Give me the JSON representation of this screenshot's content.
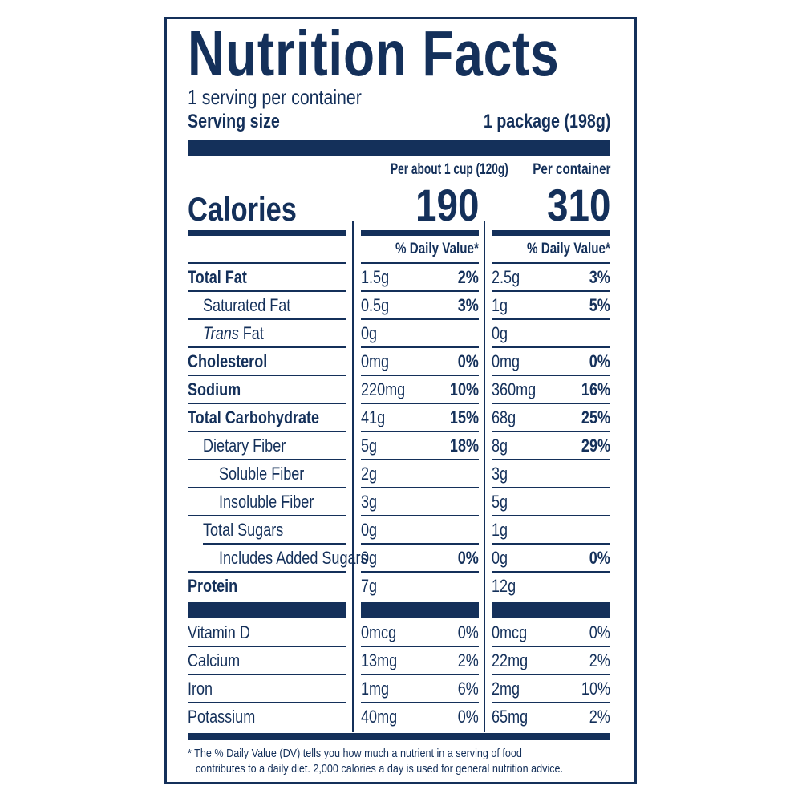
{
  "title": "Nutrition Facts",
  "servings_per_container": "1 serving per container",
  "serving_size_label": "Serving size",
  "serving_size_value": "1 package (198g)",
  "columns": [
    {
      "header": "Per about 1 cup (120g)",
      "calories": "190",
      "dv_header": "% Daily Value*"
    },
    {
      "header": "Per container",
      "calories": "310",
      "dv_header": "% Daily Value*"
    }
  ],
  "calories_label": "Calories",
  "nutrients": [
    {
      "name": "Total Fat",
      "bold": true,
      "italic_prefix": "",
      "indent": 0,
      "values": [
        {
          "amount": "1.5g",
          "dv": "2%"
        },
        {
          "amount": "2.5g",
          "dv": "3%"
        }
      ]
    },
    {
      "name": "Saturated Fat",
      "bold": false,
      "italic_prefix": "",
      "indent": 1,
      "values": [
        {
          "amount": "0.5g",
          "dv": "3%"
        },
        {
          "amount": "1g",
          "dv": "5%"
        }
      ]
    },
    {
      "name": " Fat",
      "bold": false,
      "italic_prefix": "Trans",
      "indent": 1,
      "values": [
        {
          "amount": "0g",
          "dv": ""
        },
        {
          "amount": "0g",
          "dv": ""
        }
      ]
    },
    {
      "name": "Cholesterol",
      "bold": true,
      "italic_prefix": "",
      "indent": 0,
      "values": [
        {
          "amount": "0mg",
          "dv": "0%"
        },
        {
          "amount": "0mg",
          "dv": "0%"
        }
      ]
    },
    {
      "name": "Sodium",
      "bold": true,
      "italic_prefix": "",
      "indent": 0,
      "values": [
        {
          "amount": "220mg",
          "dv": "10%"
        },
        {
          "amount": "360mg",
          "dv": "16%"
        }
      ]
    },
    {
      "name": "Total Carbohydrate",
      "bold": true,
      "italic_prefix": "",
      "indent": 0,
      "values": [
        {
          "amount": "41g",
          "dv": "15%"
        },
        {
          "amount": "68g",
          "dv": "25%"
        }
      ]
    },
    {
      "name": "Dietary Fiber",
      "bold": false,
      "italic_prefix": "",
      "indent": 1,
      "values": [
        {
          "amount": "5g",
          "dv": "18%"
        },
        {
          "amount": "8g",
          "dv": "29%"
        }
      ]
    },
    {
      "name": "Soluble Fiber",
      "bold": false,
      "italic_prefix": "",
      "indent": 2,
      "values": [
        {
          "amount": "2g",
          "dv": ""
        },
        {
          "amount": "3g",
          "dv": ""
        }
      ]
    },
    {
      "name": "Insoluble Fiber",
      "bold": false,
      "italic_prefix": "",
      "indent": 2,
      "values": [
        {
          "amount": "3g",
          "dv": ""
        },
        {
          "amount": "5g",
          "dv": ""
        }
      ]
    },
    {
      "name": "Total Sugars",
      "bold": false,
      "italic_prefix": "",
      "indent": 1,
      "values": [
        {
          "amount": "0g",
          "dv": ""
        },
        {
          "amount": "1g",
          "dv": ""
        }
      ]
    },
    {
      "name": "Includes Added Sugars",
      "bold": false,
      "italic_prefix": "",
      "indent": 2,
      "values": [
        {
          "amount": "0g",
          "dv": "0%"
        },
        {
          "amount": "0g",
          "dv": "0%"
        }
      ]
    },
    {
      "name": "Protein",
      "bold": true,
      "italic_prefix": "",
      "indent": 0,
      "values": [
        {
          "amount": "7g",
          "dv": ""
        },
        {
          "amount": "12g",
          "dv": ""
        }
      ]
    }
  ],
  "vitamins": [
    {
      "name": "Vitamin D",
      "values": [
        {
          "amount": "0mcg",
          "dv": "0%"
        },
        {
          "amount": "0mcg",
          "dv": "0%"
        }
      ]
    },
    {
      "name": "Calcium",
      "values": [
        {
          "amount": "13mg",
          "dv": "2%"
        },
        {
          "amount": "22mg",
          "dv": "2%"
        }
      ]
    },
    {
      "name": "Iron",
      "values": [
        {
          "amount": "1mg",
          "dv": "6%"
        },
        {
          "amount": "2mg",
          "dv": "10%"
        }
      ]
    },
    {
      "name": "Potassium",
      "values": [
        {
          "amount": "40mg",
          "dv": "0%"
        },
        {
          "amount": "65mg",
          "dv": "2%"
        }
      ]
    }
  ],
  "footnote_line1": "* The % Daily Value (DV) tells you how much a nutrient in a serving of food",
  "footnote_line2": "contributes to a daily diet. 2,000 calories a day is used for general nutrition advice.",
  "colors": {
    "ink": "#14305a",
    "background": "#ffffff"
  }
}
